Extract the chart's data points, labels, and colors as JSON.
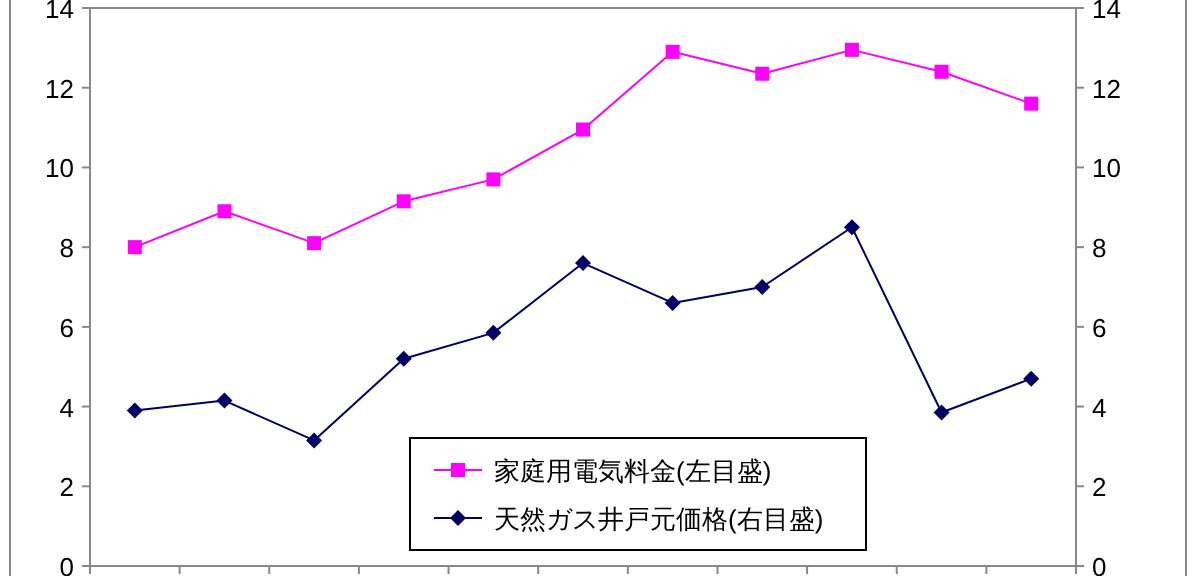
{
  "chart_data": {
    "type": "line",
    "categories": [
      null,
      null,
      null,
      null,
      null,
      null,
      null,
      null,
      null,
      null,
      null
    ],
    "series": [
      {
        "name": "家庭用電気料金(左目盛)",
        "color": "#ff00ff",
        "marker": "square",
        "values": [
          8.0,
          8.9,
          8.1,
          9.15,
          9.7,
          10.95,
          12.9,
          12.35,
          12.95,
          12.4,
          11.6
        ]
      },
      {
        "name": "天然ガス井戸元価格(右目盛)",
        "color": "#000066",
        "marker": "diamond",
        "axis": "y2",
        "values": [
          3.9,
          4.15,
          3.15,
          5.2,
          5.85,
          7.6,
          6.6,
          7.0,
          8.5,
          3.85,
          4.7
        ]
      }
    ],
    "ylim": [
      0,
      14
    ],
    "yticks": [
      0,
      2,
      4,
      6,
      8,
      10,
      12,
      14
    ],
    "y2lim": [
      0,
      14
    ],
    "y2ticks": [
      0,
      2,
      4,
      6,
      8,
      10,
      12,
      14
    ],
    "legend": "bottom",
    "grid": false
  }
}
